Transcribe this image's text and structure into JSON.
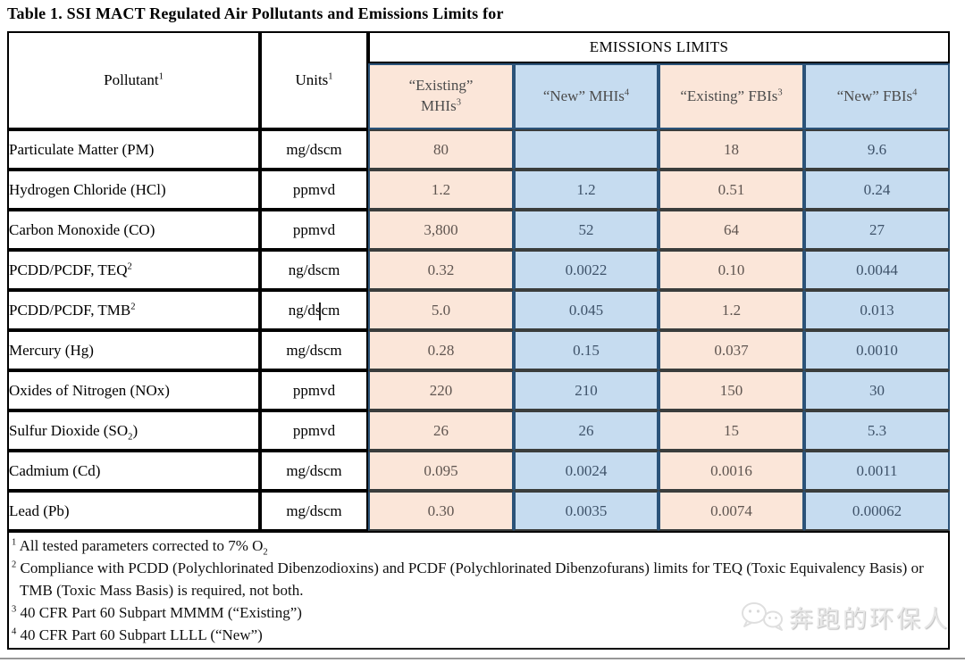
{
  "title": "Table 1. SSI MACT Regulated Air Pollutants and Emissions Limits for",
  "colors": {
    "pink_cell": "#fbe6d9",
    "blue_cell": "#c6dcf0",
    "cell_border_navy": "#2b5379",
    "grid_black": "#000000",
    "pink_cell_text": "#5f5550",
    "blue_cell_text": "#3e5269"
  },
  "table": {
    "header": {
      "pollutant": "Pollutant^{1}",
      "units": "Units^{1}",
      "emissions_limits": "EMISSIONS LIMITS",
      "subcolumns": [
        {
          "label": "“Existing”\nMHIs^{3}",
          "tone": "pink"
        },
        {
          "label": "“New” MHIs^{4}",
          "tone": "blue"
        },
        {
          "label": "“Existing” FBIs^{3}",
          "tone": "pink"
        },
        {
          "label": "“New” FBIs^{4}",
          "tone": "blue"
        }
      ]
    },
    "rows": [
      {
        "pollutant": "Particulate Matter (PM)",
        "units": "mg/dscm",
        "values": [
          "80",
          "",
          "18",
          "9.6"
        ]
      },
      {
        "pollutant": "Hydrogen Chloride (HCl)",
        "units": "ppmvd",
        "values": [
          "1.2",
          "1.2",
          "0.51",
          "0.24"
        ]
      },
      {
        "pollutant": "Carbon Monoxide (CO)",
        "units": "ppmvd",
        "values": [
          "3,800",
          "52",
          "64",
          "27"
        ]
      },
      {
        "pollutant": "PCDD/PCDF, TEQ^{2}",
        "units": "ng/dscm",
        "values": [
          "0.32",
          "0.0022",
          "0.10",
          "0.0044"
        ]
      },
      {
        "pollutant": "PCDD/PCDF, TMB^{2}",
        "units": "ng/dscm",
        "values": [
          "5.0",
          "0.045",
          "1.2",
          "0.013"
        ]
      },
      {
        "pollutant": "Mercury (Hg)",
        "units": "mg/dscm",
        "values": [
          "0.28",
          "0.15",
          "0.037",
          "0.0010"
        ]
      },
      {
        "pollutant": "Oxides of Nitrogen (NOx)",
        "units": "ppmvd",
        "values": [
          "220",
          "210",
          "150",
          "30"
        ]
      },
      {
        "pollutant": "Sulfur Dioxide (SO_{2})",
        "units": "ppmvd",
        "values": [
          "26",
          "26",
          "15",
          "5.3"
        ]
      },
      {
        "pollutant": "Cadmium (Cd)",
        "units": "mg/dscm",
        "values": [
          "0.095",
          "0.0024",
          "0.0016",
          "0.0011"
        ]
      },
      {
        "pollutant": "Lead (Pb)",
        "units": "mg/dscm",
        "values": [
          "0.30",
          "0.0035",
          "0.0074",
          "0.00062"
        ]
      }
    ]
  },
  "footnotes": [
    {
      "marker": "1",
      "text": "All tested parameters corrected to 7% O_{2}"
    },
    {
      "marker": "2",
      "text": "Compliance with PCDD (Polychlorinated Dibenzodioxins) and PCDF (Polychlorinated Dibenzofurans) limits for TEQ (Toxic Equivalency Basis) or TMB (Toxic Mass Basis) is required, not both."
    },
    {
      "marker": "3",
      "text": "40 CFR Part 60 Subpart MMMM (“Existing”)"
    },
    {
      "marker": "4",
      "text": "40 CFR Part 60 Subpart LLLL (“New”)"
    }
  ],
  "watermark": {
    "text": "奔跑的环保人",
    "icon": "wechat-bubbles-icon"
  }
}
